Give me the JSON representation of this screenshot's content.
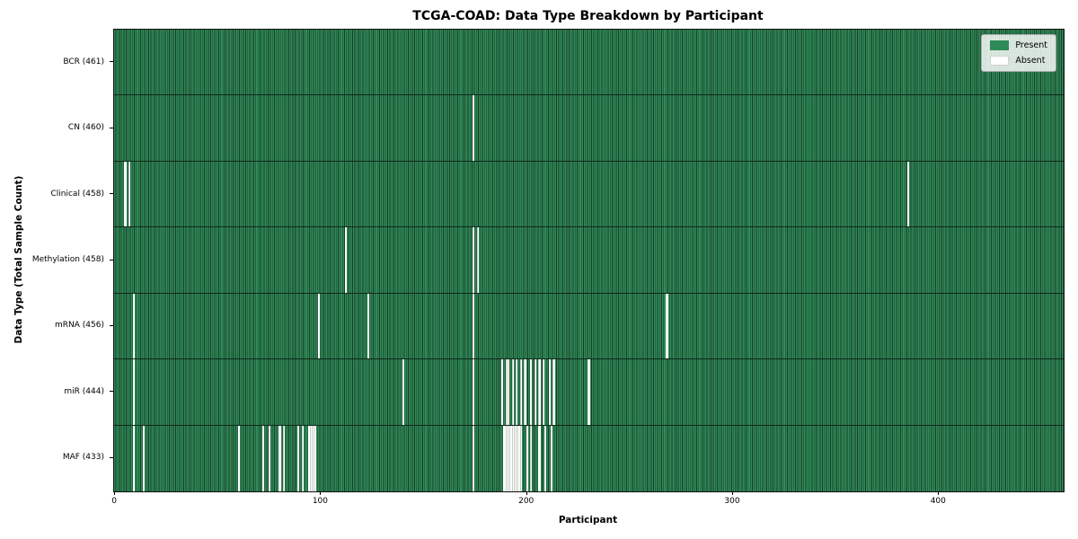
{
  "chart_data": {
    "type": "heatmap",
    "title": "TCGA-COAD: Data Type Breakdown by Participant",
    "xlabel": "Participant",
    "ylabel": "Data Type (Total Sample Count)",
    "n_participants": 461,
    "x_ticks": [
      0,
      100,
      200,
      300,
      400
    ],
    "x_range": [
      0,
      461
    ],
    "grid": false,
    "legend_position": "upper right",
    "legend": [
      {
        "label": "Present",
        "color": "#2e8b57"
      },
      {
        "label": "Absent",
        "color": "#ffffff"
      }
    ],
    "colors": {
      "present": "#2e8b57",
      "bar_edge": "#1a3b28",
      "absent": "#ffffff",
      "row_separator": "#10281a",
      "legend_bg": "rgba(255,255,255,0.82)"
    },
    "rows": [
      {
        "data_type": "BCR",
        "label": "BCR (461)",
        "total_samples": 461,
        "absent_participants": []
      },
      {
        "data_type": "CN",
        "label": "CN (460)",
        "total_samples": 460,
        "absent_participants": [
          174
        ]
      },
      {
        "data_type": "Clinical",
        "label": "Clinical (458)",
        "total_samples": 458,
        "absent_participants": [
          5,
          7,
          385
        ]
      },
      {
        "data_type": "Methylation",
        "label": "Methylation (458)",
        "total_samples": 458,
        "absent_participants": [
          112,
          174,
          176
        ]
      },
      {
        "data_type": "mRNA",
        "label": "mRNA (456)",
        "total_samples": 456,
        "absent_participants": [
          9,
          99,
          123,
          174,
          268
        ]
      },
      {
        "data_type": "miR",
        "label": "miR (444)",
        "total_samples": 444,
        "absent_participants": [
          9,
          140,
          174,
          188,
          190,
          191,
          193,
          195,
          197,
          199,
          202,
          204,
          206,
          208,
          211,
          213,
          230
        ]
      },
      {
        "data_type": "MAF",
        "label": "MAF (433)",
        "total_samples": 433,
        "absent_participants": [
          9,
          14,
          60,
          72,
          75,
          80,
          82,
          89,
          91,
          94,
          95,
          96,
          97,
          174,
          189,
          190,
          191,
          192,
          193,
          194,
          195,
          196,
          197,
          200,
          202,
          206,
          209,
          212
        ]
      }
    ]
  }
}
